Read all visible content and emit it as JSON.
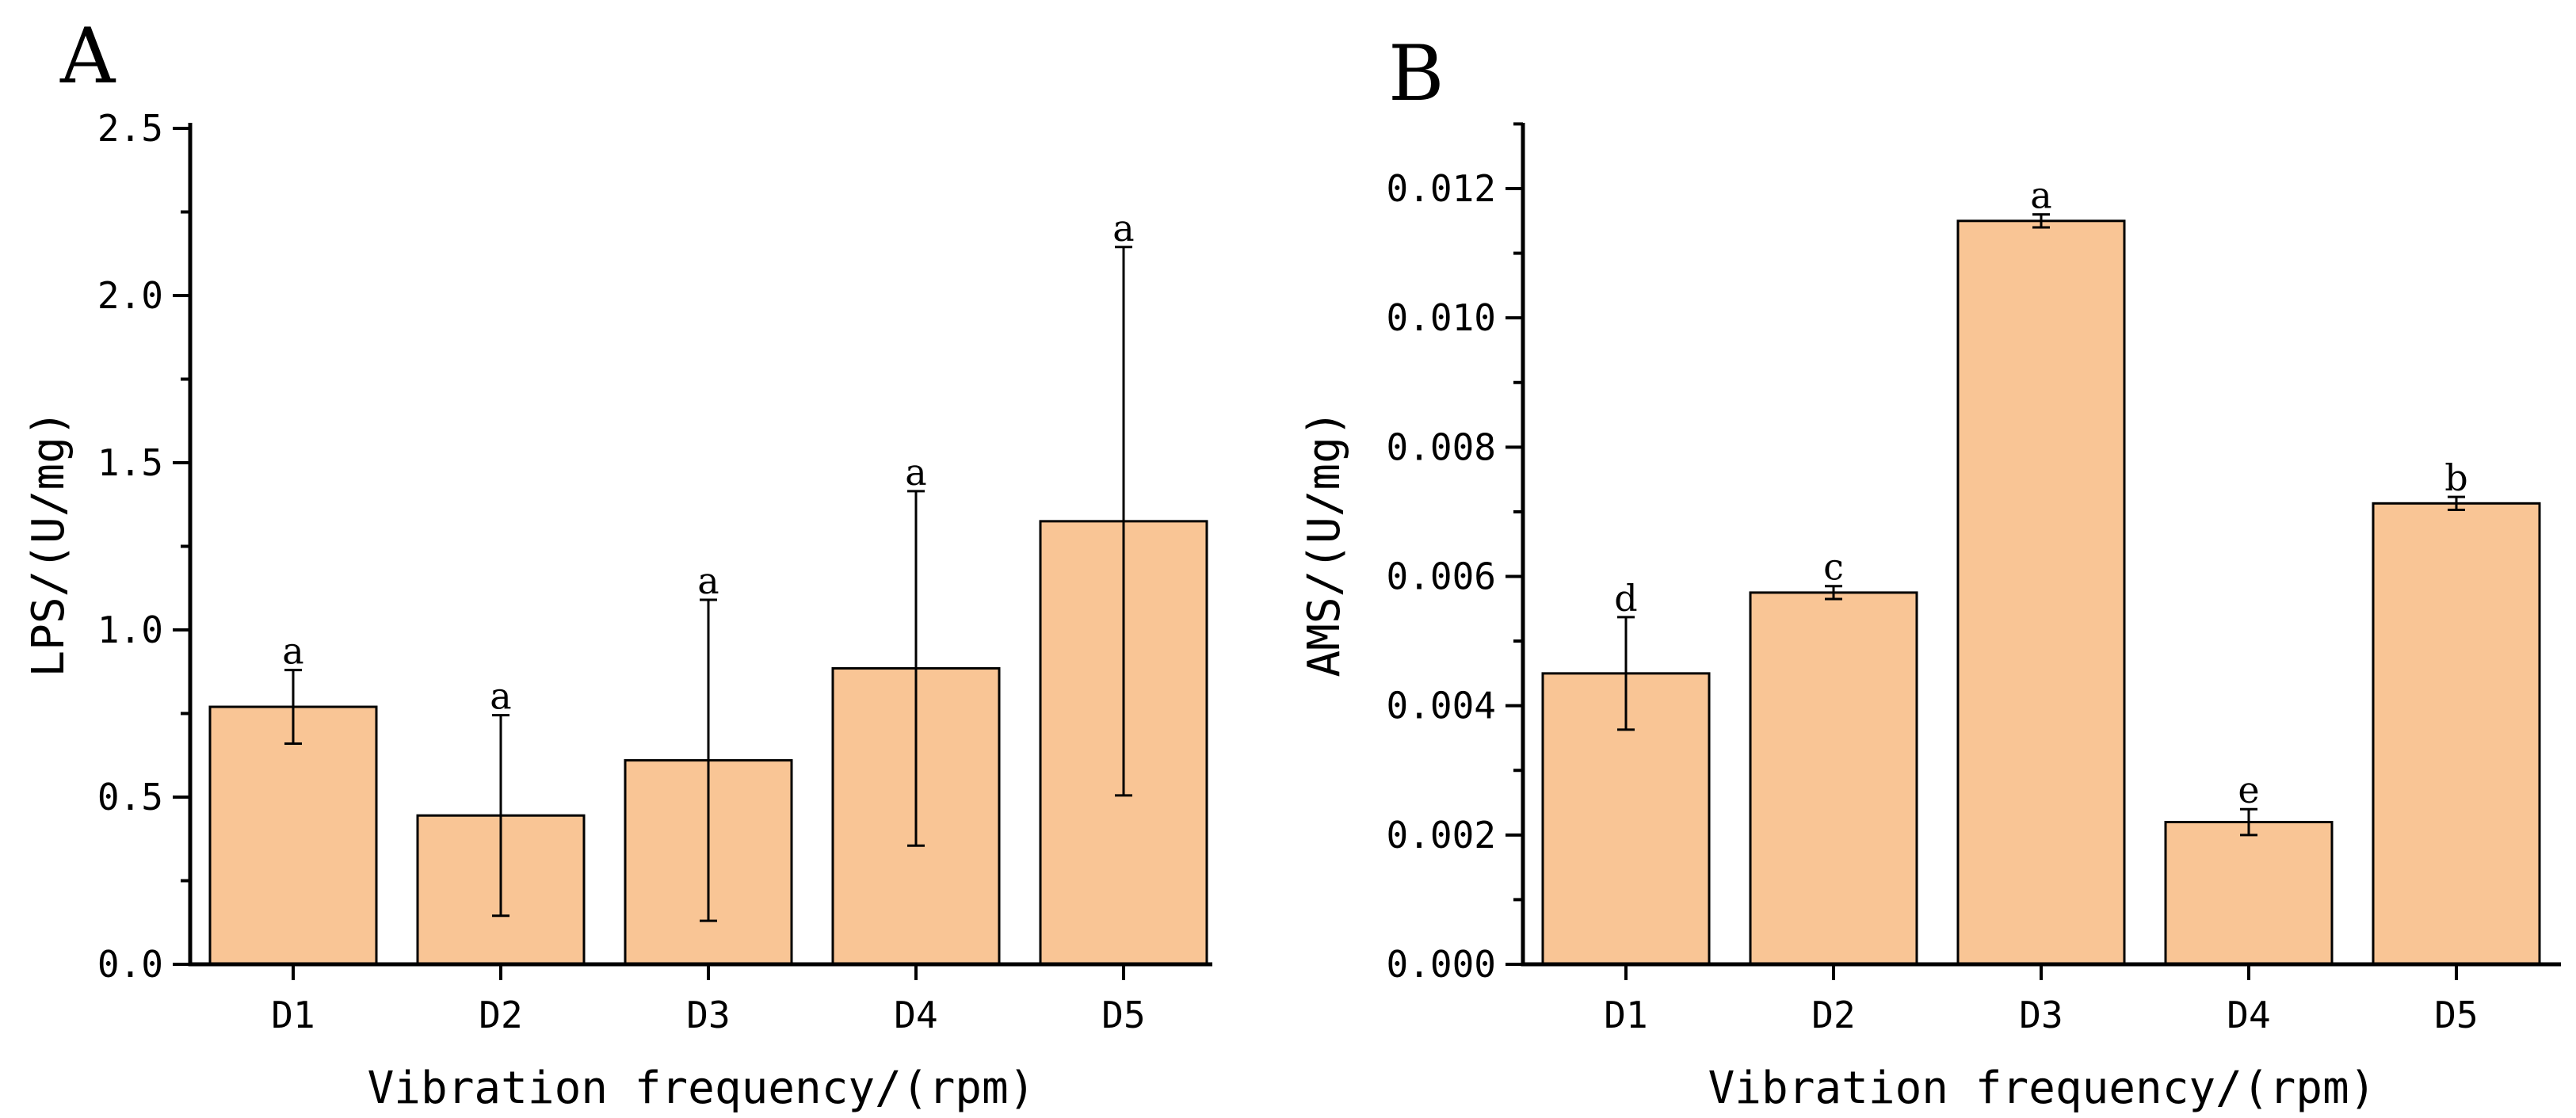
{
  "colors": {
    "bar_fill": "#f9c595",
    "stroke": "#000000"
  },
  "chart_data": [
    {
      "type": "bar",
      "panel_label": "A",
      "xlabel": "Vibration frequency/(rpm)",
      "ylabel": "LPS/(U/mg)",
      "ylim": [
        0,
        2.5
      ],
      "yticks": [
        0,
        0.5,
        1.0,
        1.5,
        2.0,
        2.5
      ],
      "ytick_labels": [
        "0.0",
        "0.5",
        "1.0",
        "1.5",
        "2.0",
        "2.5"
      ],
      "categories": [
        "D1",
        "D2",
        "D3",
        "D4",
        "D5"
      ],
      "values": [
        0.77,
        0.445,
        0.61,
        0.885,
        1.325
      ],
      "errors": [
        0.11,
        0.3,
        0.48,
        0.53,
        0.82
      ],
      "significance": [
        "a",
        "a",
        "a",
        "a",
        "a"
      ],
      "grid": false
    },
    {
      "type": "bar",
      "panel_label": "B",
      "xlabel": "Vibration frequency/(rpm)",
      "ylabel": "AMS/(U/mg)",
      "ylim": [
        0,
        0.013
      ],
      "yticks": [
        0,
        0.002,
        0.004,
        0.006,
        0.008,
        0.01,
        0.012
      ],
      "ytick_labels": [
        "0.000",
        "0.002",
        "0.004",
        "0.006",
        "0.008",
        "0.010",
        "0.012"
      ],
      "categories": [
        "D1",
        "D2",
        "D3",
        "D4",
        "D5"
      ],
      "values": [
        0.0045,
        0.00575,
        0.0115,
        0.0022,
        0.00713
      ],
      "errors": [
        0.00087,
        0.0001,
        0.0001,
        0.0002,
        0.0001
      ],
      "significance": [
        "d",
        "c",
        "a",
        "e",
        "b"
      ],
      "grid": false
    }
  ]
}
